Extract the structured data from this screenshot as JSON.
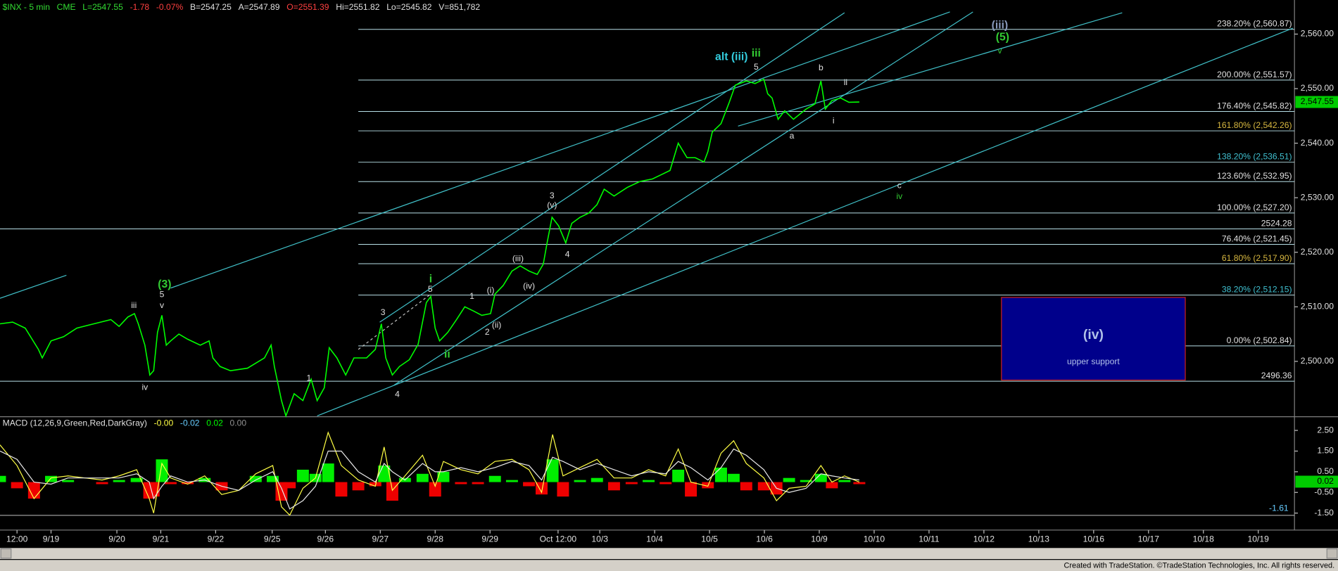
{
  "header": [
    {
      "text": "CME",
      "color": "#33dd33"
    },
    {
      "text": "L=2547.55",
      "color": "#33dd33"
    },
    {
      "text": "-1.78",
      "color": "#ff4040"
    },
    {
      "text": "-0.07%",
      "color": "#ff4040"
    },
    {
      "text": "B=2547.25",
      "color": "#e0e0e0"
    },
    {
      "text": "A=2547.89",
      "color": "#e0e0e0"
    },
    {
      "text": "O=2551.39",
      "color": "#ff4040"
    },
    {
      "text": "Hi=2551.82",
      "color": "#e0e0e0"
    },
    {
      "text": "Lo=2545.82",
      "color": "#e0e0e0"
    },
    {
      "text": "V=851,782",
      "color": "#e0e0e0"
    }
  ],
  "footer": "Created with TradeStation. ©TradeStation Technologies, Inc. All rights reserved.",
  "chart_data": [
    {
      "type": "line",
      "title": "$INX - 5 min",
      "color": "#00ff00",
      "xlim": [
        -0.93,
        22.66
      ],
      "ylim": [
        2490,
        2566.25
      ],
      "xticks": [
        {
          "value": -0.62,
          "label": "12:00"
        },
        {
          "value": 0,
          "label": "9/19"
        },
        {
          "value": 1.2,
          "label": "9/20"
        },
        {
          "value": 2.0,
          "label": "9/21"
        },
        {
          "value": 3.0,
          "label": "9/22"
        },
        {
          "value": 4.03,
          "label": "9/25"
        },
        {
          "value": 5.0,
          "label": "9/26"
        },
        {
          "value": 6.0,
          "label": "9/27"
        },
        {
          "value": 7.0,
          "label": "9/28"
        },
        {
          "value": 8.0,
          "label": "9/29"
        },
        {
          "value": 9.24,
          "label": "Oct 12:00"
        },
        {
          "value": 10,
          "label": "10/3"
        },
        {
          "value": 11,
          "label": "10/4"
        },
        {
          "value": 12,
          "label": "10/5"
        },
        {
          "value": 13,
          "label": "10/6"
        },
        {
          "value": 14,
          "label": "10/9"
        },
        {
          "value": 15,
          "label": "10/10"
        },
        {
          "value": 16,
          "label": "10/11"
        },
        {
          "value": 17,
          "label": "10/12"
        },
        {
          "value": 18,
          "label": "10/13"
        },
        {
          "value": 19,
          "label": "10/16"
        },
        {
          "value": 20,
          "label": "10/17"
        },
        {
          "value": 21,
          "label": "10/18"
        },
        {
          "value": 22,
          "label": "10/19"
        }
      ],
      "yticks": [
        {
          "value": 2500,
          "label": "2,500.00"
        },
        {
          "value": 2510,
          "label": "2,510.00"
        },
        {
          "value": 2520,
          "label": "2,520.00"
        },
        {
          "value": 2530,
          "label": "2,530.00"
        },
        {
          "value": 2540,
          "label": "2,540.00"
        },
        {
          "value": 2550,
          "label": "2,550.00"
        },
        {
          "value": 2560,
          "label": "2,560.00"
        }
      ],
      "x": [
        -0.93,
        -0.7,
        -0.47,
        -0.23,
        -0.16,
        0.0,
        0.23,
        0.47,
        0.78,
        1.09,
        1.24,
        1.4,
        1.52,
        1.59,
        1.71,
        1.8,
        1.87,
        1.94,
        2.02,
        2.1,
        2.18,
        2.33,
        2.49,
        2.72,
        2.88,
        2.95,
        3.08,
        3.27,
        3.58,
        3.89,
        4.01,
        4.07,
        4.2,
        4.28,
        4.43,
        4.59,
        4.74,
        4.85,
        4.98,
        5.07,
        5.21,
        5.37,
        5.52,
        5.75,
        5.91,
        6.02,
        6.1,
        6.22,
        6.35,
        6.53,
        6.69,
        6.84,
        6.92,
        7.0,
        7.08,
        7.23,
        7.39,
        7.54,
        7.7,
        7.85,
        8.01,
        8.09,
        8.24,
        8.4,
        8.55,
        8.71,
        8.86,
        8.97,
        9.04,
        9.13,
        9.25,
        9.38,
        9.49,
        9.64,
        9.8,
        9.95,
        10.08,
        10.26,
        10.5,
        10.73,
        10.96,
        11.12,
        11.28,
        11.43,
        11.59,
        11.74,
        11.9,
        11.97,
        12.05,
        12.21,
        12.36,
        12.47,
        12.67,
        12.83,
        12.99,
        13.06,
        13.14,
        13.25,
        13.37,
        13.53,
        13.76,
        13.92,
        14.03,
        14.11,
        14.23,
        14.39,
        14.54,
        14.73
      ],
      "values": [
        2506.88,
        2507.19,
        2506.09,
        2502.19,
        2500.63,
        2503.75,
        2504.53,
        2506.09,
        2506.88,
        2507.66,
        2506.41,
        2508.13,
        2508.75,
        2506.88,
        2502.97,
        2497.5,
        2498.28,
        2505.31,
        2508.44,
        2502.97,
        2503.75,
        2505.0,
        2504.06,
        2502.97,
        2503.75,
        2500.63,
        2499.06,
        2498.28,
        2498.75,
        2500.63,
        2502.97,
        2499.06,
        2492.81,
        2490.0,
        2494.06,
        2492.81,
        2496.72,
        2492.81,
        2495.16,
        2502.5,
        2500.63,
        2497.5,
        2500.63,
        2500.63,
        2502.19,
        2506.88,
        2500.63,
        2497.5,
        2499.06,
        2500.31,
        2503.13,
        2510.78,
        2511.88,
        2506.09,
        2503.75,
        2505.31,
        2507.66,
        2510.0,
        2509.22,
        2508.44,
        2508.75,
        2512.34,
        2513.91,
        2516.56,
        2517.5,
        2516.56,
        2515.94,
        2517.81,
        2521.72,
        2526.41,
        2524.84,
        2521.72,
        2525.31,
        2526.41,
        2527.19,
        2528.75,
        2531.56,
        2530.31,
        2531.88,
        2532.97,
        2533.44,
        2534.22,
        2535.0,
        2540.0,
        2537.34,
        2537.34,
        2536.56,
        2538.44,
        2542.03,
        2543.59,
        2547.5,
        2550.63,
        2551.41,
        2550.94,
        2551.72,
        2549.06,
        2548.28,
        2544.38,
        2545.94,
        2544.38,
        2546.25,
        2547.19,
        2551.41,
        2546.25,
        2547.81,
        2548.28,
        2547.5,
        2547.55
      ],
      "last_label": {
        "value": 2547.55,
        "label": "2,547.55"
      },
      "levels": [
        {
          "value": 2560.87,
          "label": "238.20% (2,560.87)",
          "color": "#e0e0e0",
          "start": 5.6
        },
        {
          "value": 2551.57,
          "label": "200.00% (2,551.57)",
          "color": "#e0e0e0",
          "start": 5.6
        },
        {
          "value": 2545.82,
          "label": "176.40% (2,545.82)",
          "color": "#e0e0e0",
          "start": 5.6
        },
        {
          "value": 2542.26,
          "label": "161.80% (2,542.26)",
          "color": "#d8b840",
          "start": 5.6
        },
        {
          "value": 2536.51,
          "label": "138.20% (2,536.51)",
          "color": "#40c0d0",
          "start": 5.6
        },
        {
          "value": 2532.95,
          "label": "123.60% (2,532.95)",
          "color": "#e0e0e0",
          "start": 5.6
        },
        {
          "value": 2527.2,
          "label": "100.00% (2,527.20)",
          "color": "#e0e0e0",
          "start": 5.6
        },
        {
          "value": 2524.28,
          "label": "2524.28",
          "color": "#e0e0e0",
          "start": -0.93
        },
        {
          "value": 2521.45,
          "label": "76.40% (2,521.45)",
          "color": "#e0e0e0",
          "start": 5.6
        },
        {
          "value": 2517.9,
          "label": "61.80% (2,517.90)",
          "color": "#d8b840",
          "start": 5.6
        },
        {
          "value": 2512.15,
          "label": "38.20% (2,512.15)",
          "color": "#40c0d0",
          "start": 5.6
        },
        {
          "value": 2502.84,
          "label": "0.00% (2,502.84)",
          "color": "#e0e0e0",
          "start": 5.6
        },
        {
          "value": 2496.36,
          "label": "2496.36",
          "color": "#e0e0e0",
          "start": -0.93
        }
      ],
      "trendlines": [
        {
          "x": [
            -0.93,
            0.28
          ],
          "y": [
            2511.56,
            2515.78
          ]
        },
        {
          "x": [
            2.18,
            16.38
          ],
          "y": [
            2513.44,
            2564.06
          ]
        },
        {
          "x": [
            5.99,
            14.46
          ],
          "y": [
            2507.19,
            2563.91
          ]
        },
        {
          "x": [
            6.25,
            16.8
          ],
          "y": [
            2495.63,
            2564.06
          ]
        },
        {
          "x": [
            4.85,
            22.63
          ],
          "y": [
            2490.0,
            2561.09
          ]
        },
        {
          "x": [
            12.52,
            19.52
          ],
          "y": [
            2543.13,
            2563.91
          ]
        },
        {
          "x": [
            5.6,
            6.92
          ],
          "y": [
            2502.19,
            2512.34
          ],
          "dashed": true
        }
      ],
      "annotations": [
        {
          "text": "(3)",
          "x": 2.07,
          "y": 2514.06,
          "color": "#33cc33",
          "bold": true
        },
        {
          "text": "5",
          "x": 2.02,
          "y": 2512.19,
          "color": "#e0e0e0"
        },
        {
          "text": "v",
          "x": 2.02,
          "y": 2510.16,
          "color": "#e0e0e0"
        },
        {
          "text": "iii",
          "x": 1.51,
          "y": 2510.16,
          "color": "#e0e0e0"
        },
        {
          "text": "iv",
          "x": 1.71,
          "y": 2495.16,
          "color": "#e0e0e0"
        },
        {
          "text": "1",
          "x": 4.7,
          "y": 2496.88,
          "color": "#e0e0e0"
        },
        {
          "text": "3",
          "x": 6.05,
          "y": 2508.91,
          "color": "#e0e0e0"
        },
        {
          "text": "4",
          "x": 6.31,
          "y": 2493.91,
          "color": "#e0e0e0"
        },
        {
          "text": "i",
          "x": 6.92,
          "y": 2515.0,
          "color": "#33cc33",
          "bold": true
        },
        {
          "text": "5",
          "x": 6.91,
          "y": 2513.13,
          "color": "#e0e0e0"
        },
        {
          "text": "ii",
          "x": 7.22,
          "y": 2501.25,
          "color": "#33cc33",
          "bold": true
        },
        {
          "text": "1",
          "x": 7.67,
          "y": 2511.88,
          "color": "#e0e0e0"
        },
        {
          "text": "(i)",
          "x": 8.01,
          "y": 2512.97,
          "color": "#e0e0e0"
        },
        {
          "text": "2",
          "x": 7.95,
          "y": 2505.31,
          "color": "#e0e0e0"
        },
        {
          "text": "(ii)",
          "x": 8.12,
          "y": 2506.56,
          "color": "#e0e0e0"
        },
        {
          "text": "(iii)",
          "x": 8.51,
          "y": 2518.75,
          "color": "#e0e0e0"
        },
        {
          "text": "(iv)",
          "x": 8.71,
          "y": 2513.75,
          "color": "#e0e0e0"
        },
        {
          "text": "3",
          "x": 9.13,
          "y": 2530.31,
          "color": "#e0e0e0"
        },
        {
          "text": "(v)",
          "x": 9.13,
          "y": 2528.59,
          "color": "#e0e0e0"
        },
        {
          "text": "4",
          "x": 9.41,
          "y": 2519.53,
          "color": "#e0e0e0"
        },
        {
          "text": "alt (iii)",
          "x": 12.4,
          "y": 2555.78,
          "color": "#33ccdd",
          "bold": true
        },
        {
          "text": "iii",
          "x": 12.85,
          "y": 2556.41,
          "color": "#33cc33",
          "bold": true
        },
        {
          "text": "5",
          "x": 12.85,
          "y": 2553.91,
          "color": "#e0e0e0"
        },
        {
          "text": "b",
          "x": 14.03,
          "y": 2553.75,
          "color": "#e0e0e0"
        },
        {
          "text": "ii",
          "x": 14.48,
          "y": 2551.09,
          "color": "#e0e0e0"
        },
        {
          "text": "a",
          "x": 13.5,
          "y": 2541.25,
          "color": "#e0e0e0"
        },
        {
          "text": "i",
          "x": 14.26,
          "y": 2544.06,
          "color": "#e0e0e0"
        },
        {
          "text": "(iii)",
          "x": 17.29,
          "y": 2561.56,
          "color": "#8899bb",
          "bold": true
        },
        {
          "text": "(5)",
          "x": 17.34,
          "y": 2559.38,
          "color": "#33cc33",
          "bold": true
        },
        {
          "text": "v",
          "x": 17.29,
          "y": 2556.88,
          "color": "#33cc33"
        },
        {
          "text": "c",
          "x": 15.46,
          "y": 2532.19,
          "color": "#e0e0e0"
        },
        {
          "text": "iv",
          "x": 15.46,
          "y": 2530.16,
          "color": "#33cc33"
        }
      ],
      "box": {
        "x": [
          17.32,
          20.67
        ],
        "y": [
          2511.72,
          2496.56
        ],
        "title": "(iv)",
        "subtitle": "upper support",
        "color": "#00008b",
        "border": "#cc2020"
      }
    },
    {
      "type": "macd",
      "title": "MACD (12,26,9,Green,Red,DarkGray)",
      "legend": [
        {
          "value": 0,
          "label": "-0.00",
          "color": "#ffff44"
        },
        {
          "value": -0.02,
          "label": "-0.02",
          "color": "#66ccff"
        },
        {
          "value": 0.02,
          "label": "0.02",
          "color": "#00ff00"
        },
        {
          "value": 0,
          "label": "0.00",
          "color": "#909090"
        }
      ],
      "ylim": [
        -2.24,
        3.12
      ],
      "yticks": [
        {
          "value": 2.5,
          "label": "2.50"
        },
        {
          "value": 1.5,
          "label": "1.50"
        },
        {
          "value": 0.5,
          "label": "0.50"
        },
        {
          "value": -0.5,
          "label": "-0.50"
        },
        {
          "value": -1.5,
          "label": "-1.50"
        }
      ],
      "x": [
        -0.93,
        -0.62,
        -0.31,
        0,
        0.31,
        0.62,
        0.93,
        1.24,
        1.56,
        1.79,
        1.87,
        2.02,
        2.18,
        2.49,
        2.8,
        3.11,
        3.42,
        3.73,
        4.04,
        4.2,
        4.35,
        4.59,
        4.82,
        5.05,
        5.29,
        5.6,
        5.91,
        6.07,
        6.22,
        6.45,
        6.77,
        7.0,
        7.15,
        7.47,
        7.78,
        8.09,
        8.4,
        8.71,
        8.94,
        9.14,
        9.33,
        9.64,
        9.95,
        10.26,
        10.58,
        10.89,
        11.2,
        11.43,
        11.66,
        11.97,
        12.21,
        12.44,
        12.67,
        12.99,
        13.22,
        13.45,
        13.76,
        14.03,
        14.23,
        14.46,
        14.73
      ],
      "series": [
        {
          "color": "#ffff44",
          "values": [
            1.8,
            0.8,
            -0.8,
            0.2,
            0.3,
            0.2,
            0.1,
            0.3,
            0.6,
            -0.8,
            -1.5,
            0.9,
            0.2,
            -0.1,
            0.3,
            -0.6,
            -0.4,
            0.4,
            0.8,
            -1.2,
            -1.6,
            -0.3,
            0.2,
            2.4,
            0.8,
            0.1,
            -0.2,
            1.7,
            -0.4,
            0.3,
            1.3,
            -0.2,
            1.0,
            0.6,
            0.4,
            1.0,
            1.1,
            0.6,
            -0.5,
            2.3,
            0.3,
            0.7,
            1.1,
            0.2,
            0.2,
            0.6,
            0.3,
            1.6,
            0.0,
            -0.2,
            1.4,
            2.0,
            0.9,
            0.2,
            -0.9,
            -0.3,
            -0.2,
            0.8,
            0.0,
            0.3,
            0.0
          ]
        },
        {
          "color": "#e8e8e8",
          "values": [
            1.5,
            1.1,
            0.0,
            -0.1,
            0.2,
            0.2,
            0.2,
            0.2,
            0.4,
            0.0,
            -0.8,
            -0.2,
            0.3,
            0.0,
            0.1,
            -0.2,
            -0.4,
            0.1,
            0.5,
            -0.3,
            -1.3,
            -0.9,
            -0.2,
            1.5,
            1.5,
            0.5,
            0.0,
            0.9,
            0.5,
            0.1,
            0.9,
            0.5,
            0.5,
            0.7,
            0.5,
            0.7,
            1.0,
            0.8,
            0.1,
            1.2,
            1.0,
            0.6,
            0.9,
            0.6,
            0.3,
            0.5,
            0.4,
            1.0,
            0.7,
            0.1,
            0.7,
            1.6,
            1.3,
            0.6,
            -0.3,
            -0.5,
            -0.3,
            0.4,
            0.3,
            0.2,
            0.1
          ]
        }
      ],
      "diff": {
        "pos_color": "#00ee00",
        "neg_color": "#ee0000",
        "values": [
          0.3,
          -0.3,
          -0.8,
          0.3,
          0.1,
          0.0,
          -0.1,
          0.1,
          0.2,
          -0.8,
          -0.7,
          1.1,
          -0.1,
          -0.1,
          0.2,
          -0.4,
          0.0,
          0.3,
          0.3,
          -0.9,
          -0.3,
          0.6,
          0.4,
          0.9,
          -0.7,
          -0.4,
          -0.2,
          0.8,
          -0.9,
          0.2,
          0.4,
          -0.7,
          0.5,
          -0.1,
          -0.1,
          0.3,
          0.1,
          -0.2,
          -0.6,
          1.1,
          -0.7,
          0.1,
          0.2,
          -0.4,
          -0.1,
          0.1,
          -0.1,
          0.6,
          -0.7,
          -0.3,
          0.7,
          0.4,
          -0.4,
          -0.4,
          -0.6,
          0.2,
          0.1,
          0.4,
          -0.3,
          0.1,
          -0.1
        ]
      },
      "last_label": {
        "value": 0.02,
        "label": "0.02"
      },
      "level": {
        "value": -1.61,
        "label": "-1.61"
      }
    }
  ]
}
